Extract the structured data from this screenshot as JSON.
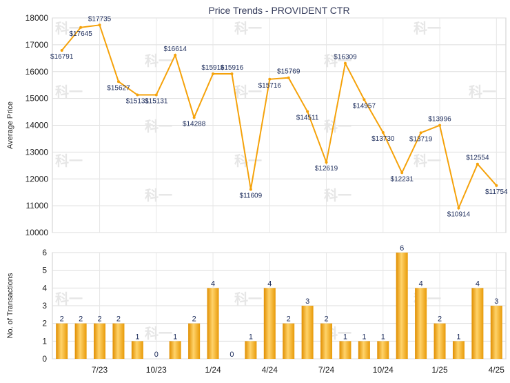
{
  "chart_data": [
    {
      "type": "line",
      "title": "Price Trends - PROVIDENT CTR",
      "ylabel": "Average Price",
      "ylim": [
        10000,
        18000
      ],
      "yticks": [
        10000,
        11000,
        12000,
        13000,
        14000,
        15000,
        16000,
        17000,
        18000
      ],
      "grid": true,
      "x": [
        "2023-05",
        "2023-06",
        "2023-07",
        "2023-08",
        "2023-09",
        "2023-10",
        "2023-11",
        "2023-12",
        "2024-01",
        "2024-02",
        "2024-03",
        "2024-04",
        "2024-05",
        "2024-06",
        "2024-07",
        "2024-08",
        "2024-09",
        "2024-10",
        "2024-11",
        "2024-12",
        "2025-01",
        "2025-02",
        "2025-03",
        "2025-04"
      ],
      "values": [
        16791,
        17645,
        17735,
        15627,
        15131,
        15131,
        16614,
        14288,
        15916,
        15916,
        11609,
        15716,
        15769,
        14511,
        12619,
        16309,
        14957,
        13730,
        12231,
        13719,
        13996,
        10914,
        12554,
        11754
      ],
      "labels": [
        "$16791",
        "$17645",
        "$17735",
        "$15627",
        "$15131",
        "$15131",
        "$16614",
        "$14288",
        "$15916",
        "$15916",
        "$11609",
        "$15716",
        "$15769",
        "$14511",
        "$12619",
        "$16309",
        "$14957",
        "$13730",
        "$12231",
        "$13719",
        "$13996",
        "$10914",
        "$12554",
        "$11754"
      ],
      "color": "#f5a20a"
    },
    {
      "type": "bar",
      "ylabel": "No. of Transactions",
      "ylim": [
        0,
        6
      ],
      "yticks": [
        0,
        1,
        2,
        3,
        4,
        5,
        6
      ],
      "grid": true,
      "categories": [
        "2023-05",
        "2023-06",
        "2023-07",
        "2023-08",
        "2023-09",
        "2023-10",
        "2023-11",
        "2023-12",
        "2024-01",
        "2024-02",
        "2024-03",
        "2024-04",
        "2024-05",
        "2024-06",
        "2024-07",
        "2024-08",
        "2024-09",
        "2024-10",
        "2024-11",
        "2024-12",
        "2025-01",
        "2025-02",
        "2025-03",
        "2025-04"
      ],
      "values": [
        2,
        2,
        2,
        2,
        1,
        0,
        1,
        2,
        4,
        0,
        1,
        4,
        2,
        3,
        2,
        1,
        1,
        1,
        6,
        4,
        2,
        1,
        4,
        3
      ],
      "xtick_labels": [
        {
          "index": 2,
          "label": "7/23"
        },
        {
          "index": 5,
          "label": "10/23"
        },
        {
          "index": 8,
          "label": "1/24"
        },
        {
          "index": 11,
          "label": "4/24"
        },
        {
          "index": 14,
          "label": "7/24"
        },
        {
          "index": 17,
          "label": "10/24"
        },
        {
          "index": 20,
          "label": "1/25"
        },
        {
          "index": 23,
          "label": "4/25"
        }
      ],
      "color": "#f5a20a"
    }
  ],
  "watermark_text": "科一"
}
